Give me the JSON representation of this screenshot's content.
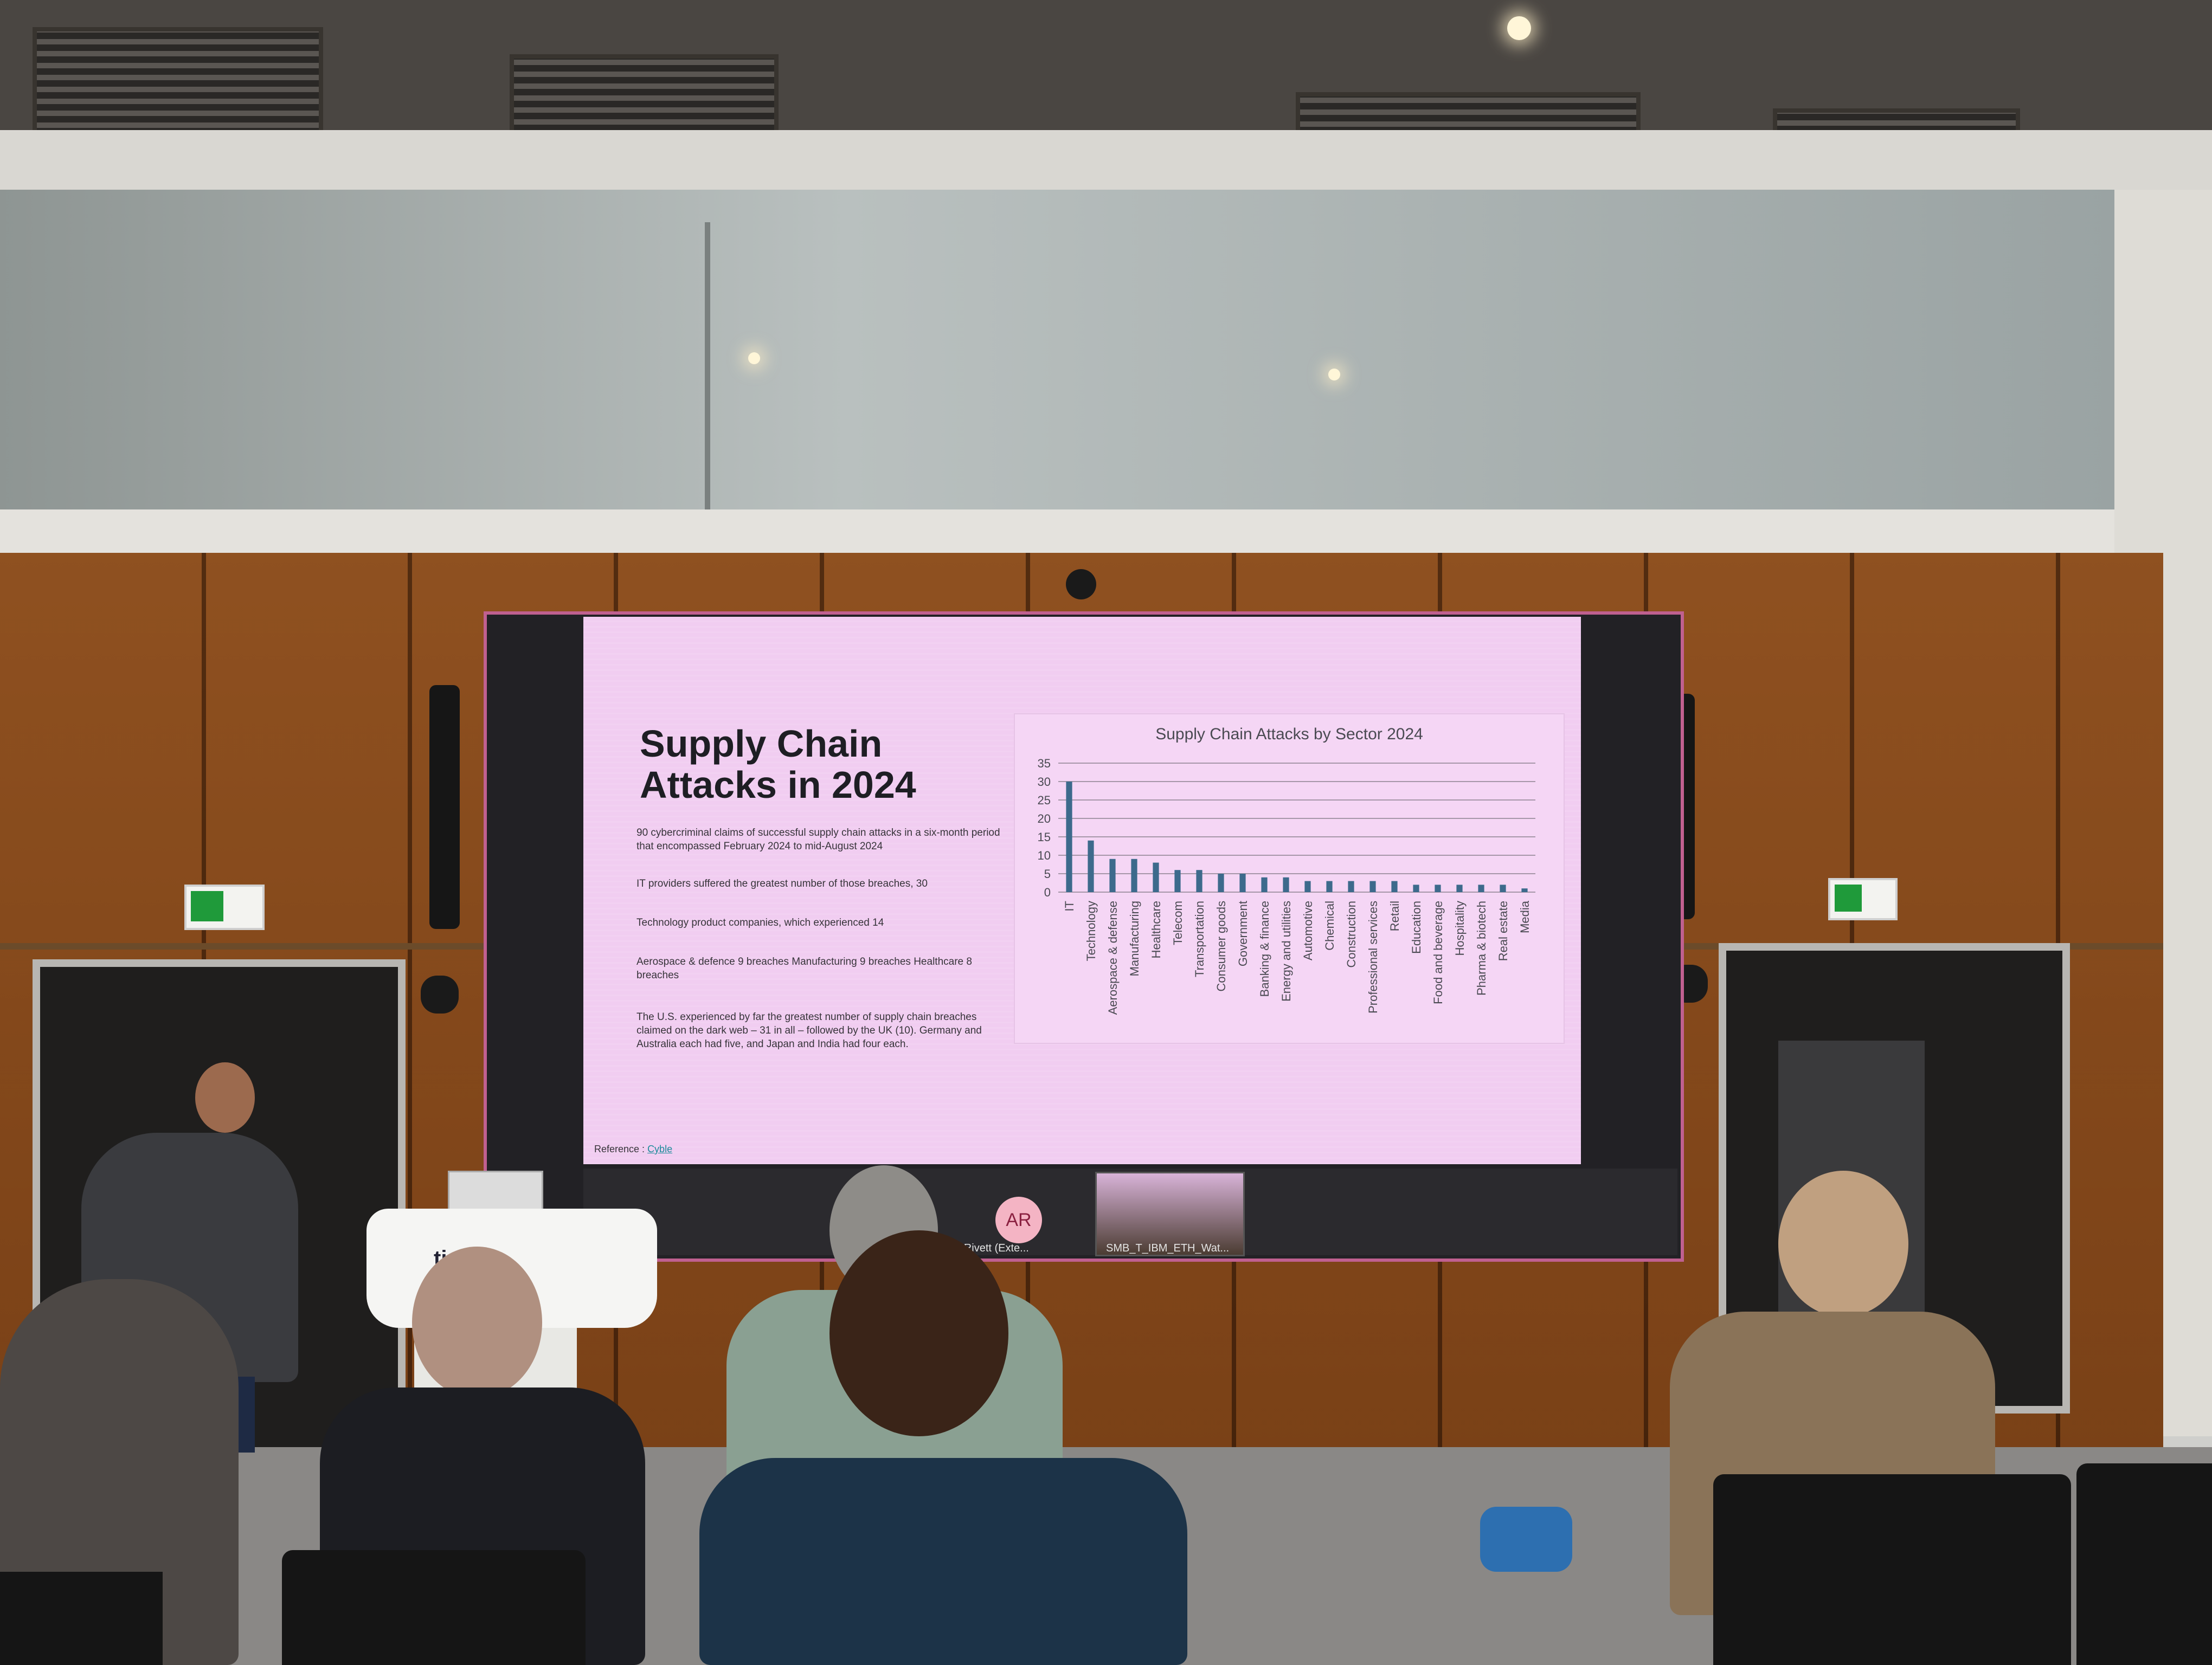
{
  "slide": {
    "title": "Supply Chain Attacks in 2024",
    "paragraphs": [
      "90 cybercriminal claims of successful supply chain attacks in a six-month period that encompassed February 2024 to mid-August 2024",
      "IT providers suffered the greatest number of those breaches, 30",
      "Technology product companies, which experienced 14",
      "Aerospace & defence 9 breaches Manufacturing 9 breaches    Healthcare 8 breaches",
      "The U.S. experienced by far the greatest number of supply chain breaches claimed on the dark web – 31 in all – followed by the UK (10). Germany and Australia each had five, and Japan and India had four each."
    ],
    "reference_label": "Reference : ",
    "reference_link": "Cyble"
  },
  "chart_data": {
    "type": "bar",
    "title": "Supply Chain Attacks by Sector 2024",
    "categories": [
      "IT",
      "Technology",
      "Aerospace & defense",
      "Manufacturing",
      "Healthcare",
      "Telecom",
      "Transportation",
      "Consumer goods",
      "Government",
      "Banking & finance",
      "Energy and utilities",
      "Automotive",
      "Chemical",
      "Construction",
      "Professional services",
      "Retail",
      "Education",
      "Food and beverage",
      "Hospitality",
      "Pharma & biotech",
      "Real estate",
      "Media"
    ],
    "values": [
      30,
      14,
      9,
      9,
      8,
      6,
      6,
      5,
      5,
      4,
      4,
      3,
      3,
      3,
      3,
      3,
      2,
      2,
      2,
      2,
      2,
      1
    ],
    "ylim": [
      0,
      35
    ],
    "yticks": [
      "0",
      "5",
      "10",
      "15",
      "20",
      "25",
      "30",
      "35"
    ],
    "grid": true,
    "bar_color": "#3d6a8c"
  },
  "meeting": {
    "avatar_initials": "AR",
    "participant_name": "on Rivett (Exte...",
    "thumbnail_name": "SMB_T_IBM_ETH_Wat..."
  },
  "lectern": {
    "label": "tion"
  }
}
